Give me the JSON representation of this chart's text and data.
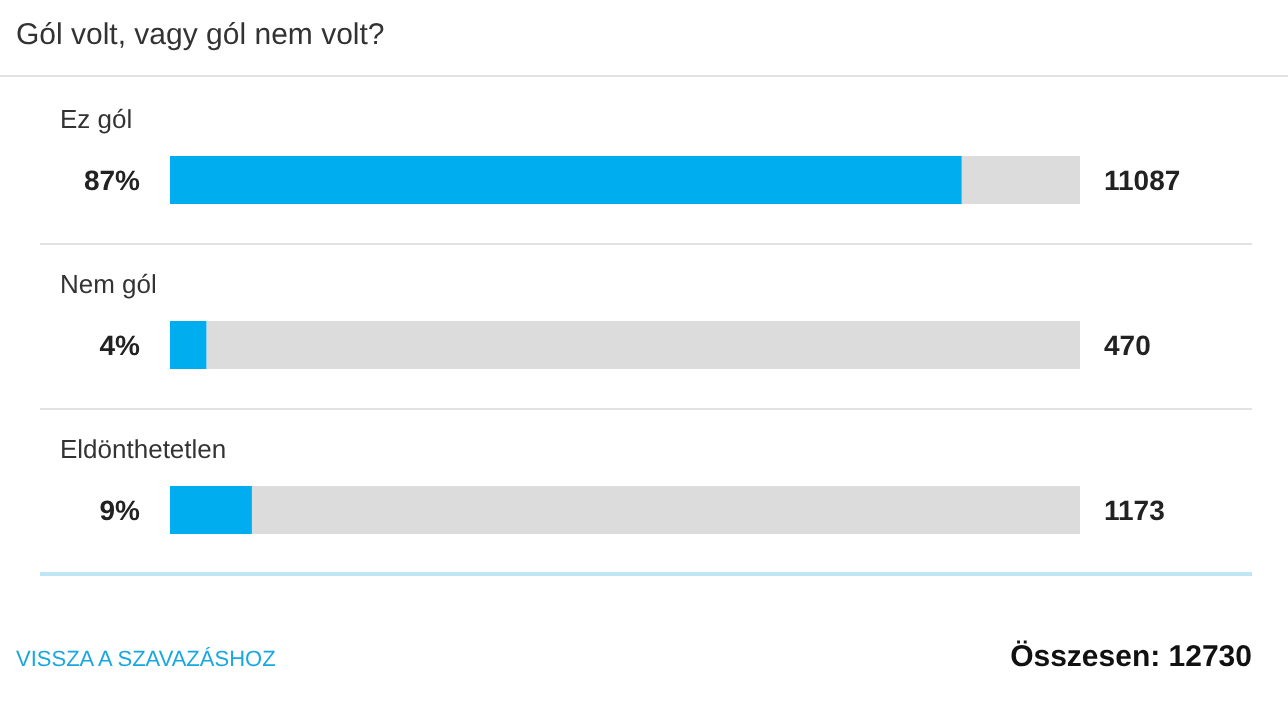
{
  "chart_data": {
    "type": "bar",
    "orientation": "horizontal",
    "title": "Gól volt, vagy gól nem volt?",
    "categories": [
      "Ez gól",
      "Nem gól",
      "Eldönthetetlen"
    ],
    "values": [
      87,
      4,
      9
    ],
    "value_labels": [
      "87%",
      "4%",
      "9%"
    ],
    "color": "#00aeef",
    "xlim": [
      0,
      100
    ],
    "annotations": [
      "11087",
      "470",
      "1173",
      "VISSZA A SZAVAZÁSHOZ",
      "Összesen: 12730"
    ]
  }
}
